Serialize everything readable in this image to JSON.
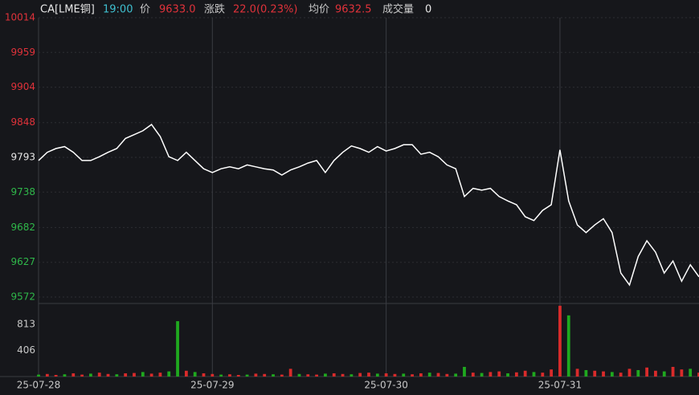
{
  "header": {
    "symbol": "CA[LME铜]",
    "time": "19:00",
    "price_label": "价",
    "price": "9633.0",
    "change_label": "涨跌",
    "change": "22.0(0.23%)",
    "avg_label": "均价",
    "avg": "9632.5",
    "volume_label": "成交量",
    "volume": "0"
  },
  "chart_data": [
    {
      "type": "line",
      "color": "#ffffff",
      "x": [
        0,
        1,
        2,
        3,
        4,
        5,
        6,
        7,
        8,
        9,
        10,
        11,
        12,
        13,
        14,
        15,
        16,
        17,
        18,
        19,
        20,
        21,
        22,
        23,
        24,
        25,
        26,
        27,
        28,
        29,
        30,
        31,
        32,
        33,
        34,
        35,
        36,
        37,
        38,
        39,
        40,
        41,
        42,
        43,
        44,
        45,
        46,
        47,
        48,
        49,
        50,
        51,
        52,
        53,
        54,
        55,
        56,
        57,
        58,
        59,
        60,
        61,
        62,
        63,
        64,
        65,
        66,
        67,
        68,
        69,
        70,
        71,
        72,
        73,
        74,
        75,
        76
      ],
      "values": [
        9788,
        9801,
        9807,
        9810,
        9801,
        9788,
        9788,
        9794,
        9801,
        9807,
        9823,
        9829,
        9835,
        9845,
        9826,
        9794,
        9788,
        9801,
        9788,
        9775,
        9769,
        9775,
        9778,
        9775,
        9781,
        9778,
        9775,
        9773,
        9765,
        9773,
        9778,
        9784,
        9788,
        9769,
        9788,
        9801,
        9811,
        9807,
        9801,
        9810,
        9803,
        9807,
        9813,
        9813,
        9798,
        9801,
        9794,
        9781,
        9775,
        9731,
        9744,
        9741,
        9744,
        9731,
        9724,
        9718,
        9699,
        9693,
        9709,
        9718,
        9805,
        9724,
        9686,
        9674,
        9686,
        9696,
        9674,
        9610,
        9591,
        9636,
        9661,
        9643,
        9610,
        9629,
        9597,
        9623,
        9604
      ],
      "xlim": [
        0,
        76
      ],
      "xticks": [
        {
          "value": 0,
          "label": "25-07-28"
        },
        {
          "value": 20,
          "label": "25-07-29"
        },
        {
          "value": 40,
          "label": "25-07-30"
        },
        {
          "value": 60,
          "label": "25-07-31"
        }
      ],
      "ylim": [
        9572,
        10014
      ],
      "yticks": [
        10014,
        9959,
        9904,
        9848,
        9793,
        9738,
        9682,
        9627,
        9572
      ],
      "ytick_colors": [
        "#e0323a",
        "#e0323a",
        "#e0323a",
        "#e0323a",
        "#e8e8e8",
        "#2fb84a",
        "#2fb84a",
        "#2fb84a",
        "#2fb84a"
      ],
      "grid": true
    },
    {
      "type": "bar",
      "x": [
        0,
        1,
        2,
        3,
        4,
        5,
        6,
        7,
        8,
        9,
        10,
        11,
        12,
        13,
        14,
        15,
        16,
        17,
        18,
        19,
        20,
        21,
        22,
        23,
        24,
        25,
        26,
        27,
        28,
        29,
        30,
        31,
        32,
        33,
        34,
        35,
        36,
        37,
        38,
        39,
        40,
        41,
        42,
        43,
        44,
        45,
        46,
        47,
        48,
        49,
        50,
        51,
        52,
        53,
        54,
        55,
        56,
        57,
        58,
        59,
        60,
        61,
        62,
        63,
        64,
        65,
        66,
        67,
        68,
        69,
        70,
        71,
        72,
        73,
        74,
        75,
        76
      ],
      "values": [
        30,
        40,
        25,
        35,
        50,
        30,
        45,
        60,
        40,
        35,
        50,
        55,
        70,
        45,
        60,
        80,
        860,
        90,
        70,
        50,
        40,
        30,
        35,
        25,
        30,
        45,
        40,
        35,
        30,
        120,
        40,
        35,
        30,
        45,
        50,
        40,
        35,
        55,
        60,
        45,
        50,
        40,
        45,
        35,
        50,
        60,
        55,
        40,
        45,
        150,
        60,
        55,
        70,
        80,
        50,
        65,
        90,
        70,
        60,
        110,
        1100,
        950,
        120,
        100,
        90,
        80,
        70,
        60,
        120,
        100,
        140,
        90,
        80,
        150,
        110,
        120,
        60
      ],
      "colors": [
        "#1fa91f",
        "#d92b2b",
        "#d92b2b",
        "#1fa91f",
        "#d92b2b",
        "#d92b2b",
        "#1fa91f",
        "#d92b2b",
        "#d92b2b",
        "#1fa91f",
        "#d92b2b",
        "#d92b2b",
        "#1fa91f",
        "#d92b2b",
        "#d92b2b",
        "#1fa91f",
        "#1fa91f",
        "#d92b2b",
        "#1fa91f",
        "#d92b2b",
        "#d92b2b",
        "#1fa91f",
        "#d92b2b",
        "#d92b2b",
        "#1fa91f",
        "#d92b2b",
        "#d92b2b",
        "#1fa91f",
        "#d92b2b",
        "#d92b2b",
        "#1fa91f",
        "#d92b2b",
        "#d92b2b",
        "#1fa91f",
        "#d92b2b",
        "#d92b2b",
        "#1fa91f",
        "#d92b2b",
        "#d92b2b",
        "#1fa91f",
        "#d92b2b",
        "#d92b2b",
        "#1fa91f",
        "#d92b2b",
        "#d92b2b",
        "#1fa91f",
        "#d92b2b",
        "#d92b2b",
        "#1fa91f",
        "#1fa91f",
        "#d92b2b",
        "#1fa91f",
        "#d92b2b",
        "#d92b2b",
        "#1fa91f",
        "#d92b2b",
        "#d92b2b",
        "#1fa91f",
        "#d92b2b",
        "#d92b2b",
        "#d92b2b",
        "#1fa91f",
        "#d92b2b",
        "#1fa91f",
        "#d92b2b",
        "#d92b2b",
        "#1fa91f",
        "#d92b2b",
        "#d92b2b",
        "#1fa91f",
        "#d92b2b",
        "#d92b2b",
        "#1fa91f",
        "#d92b2b",
        "#d92b2b",
        "#1fa91f",
        "#d92b2b"
      ],
      "xlim": [
        0,
        76
      ],
      "ylim": [
        0,
        1110
      ],
      "yticks": [
        406,
        813
      ],
      "ytick_colors": [
        "#c8c8c8",
        "#c8c8c8"
      ]
    }
  ]
}
